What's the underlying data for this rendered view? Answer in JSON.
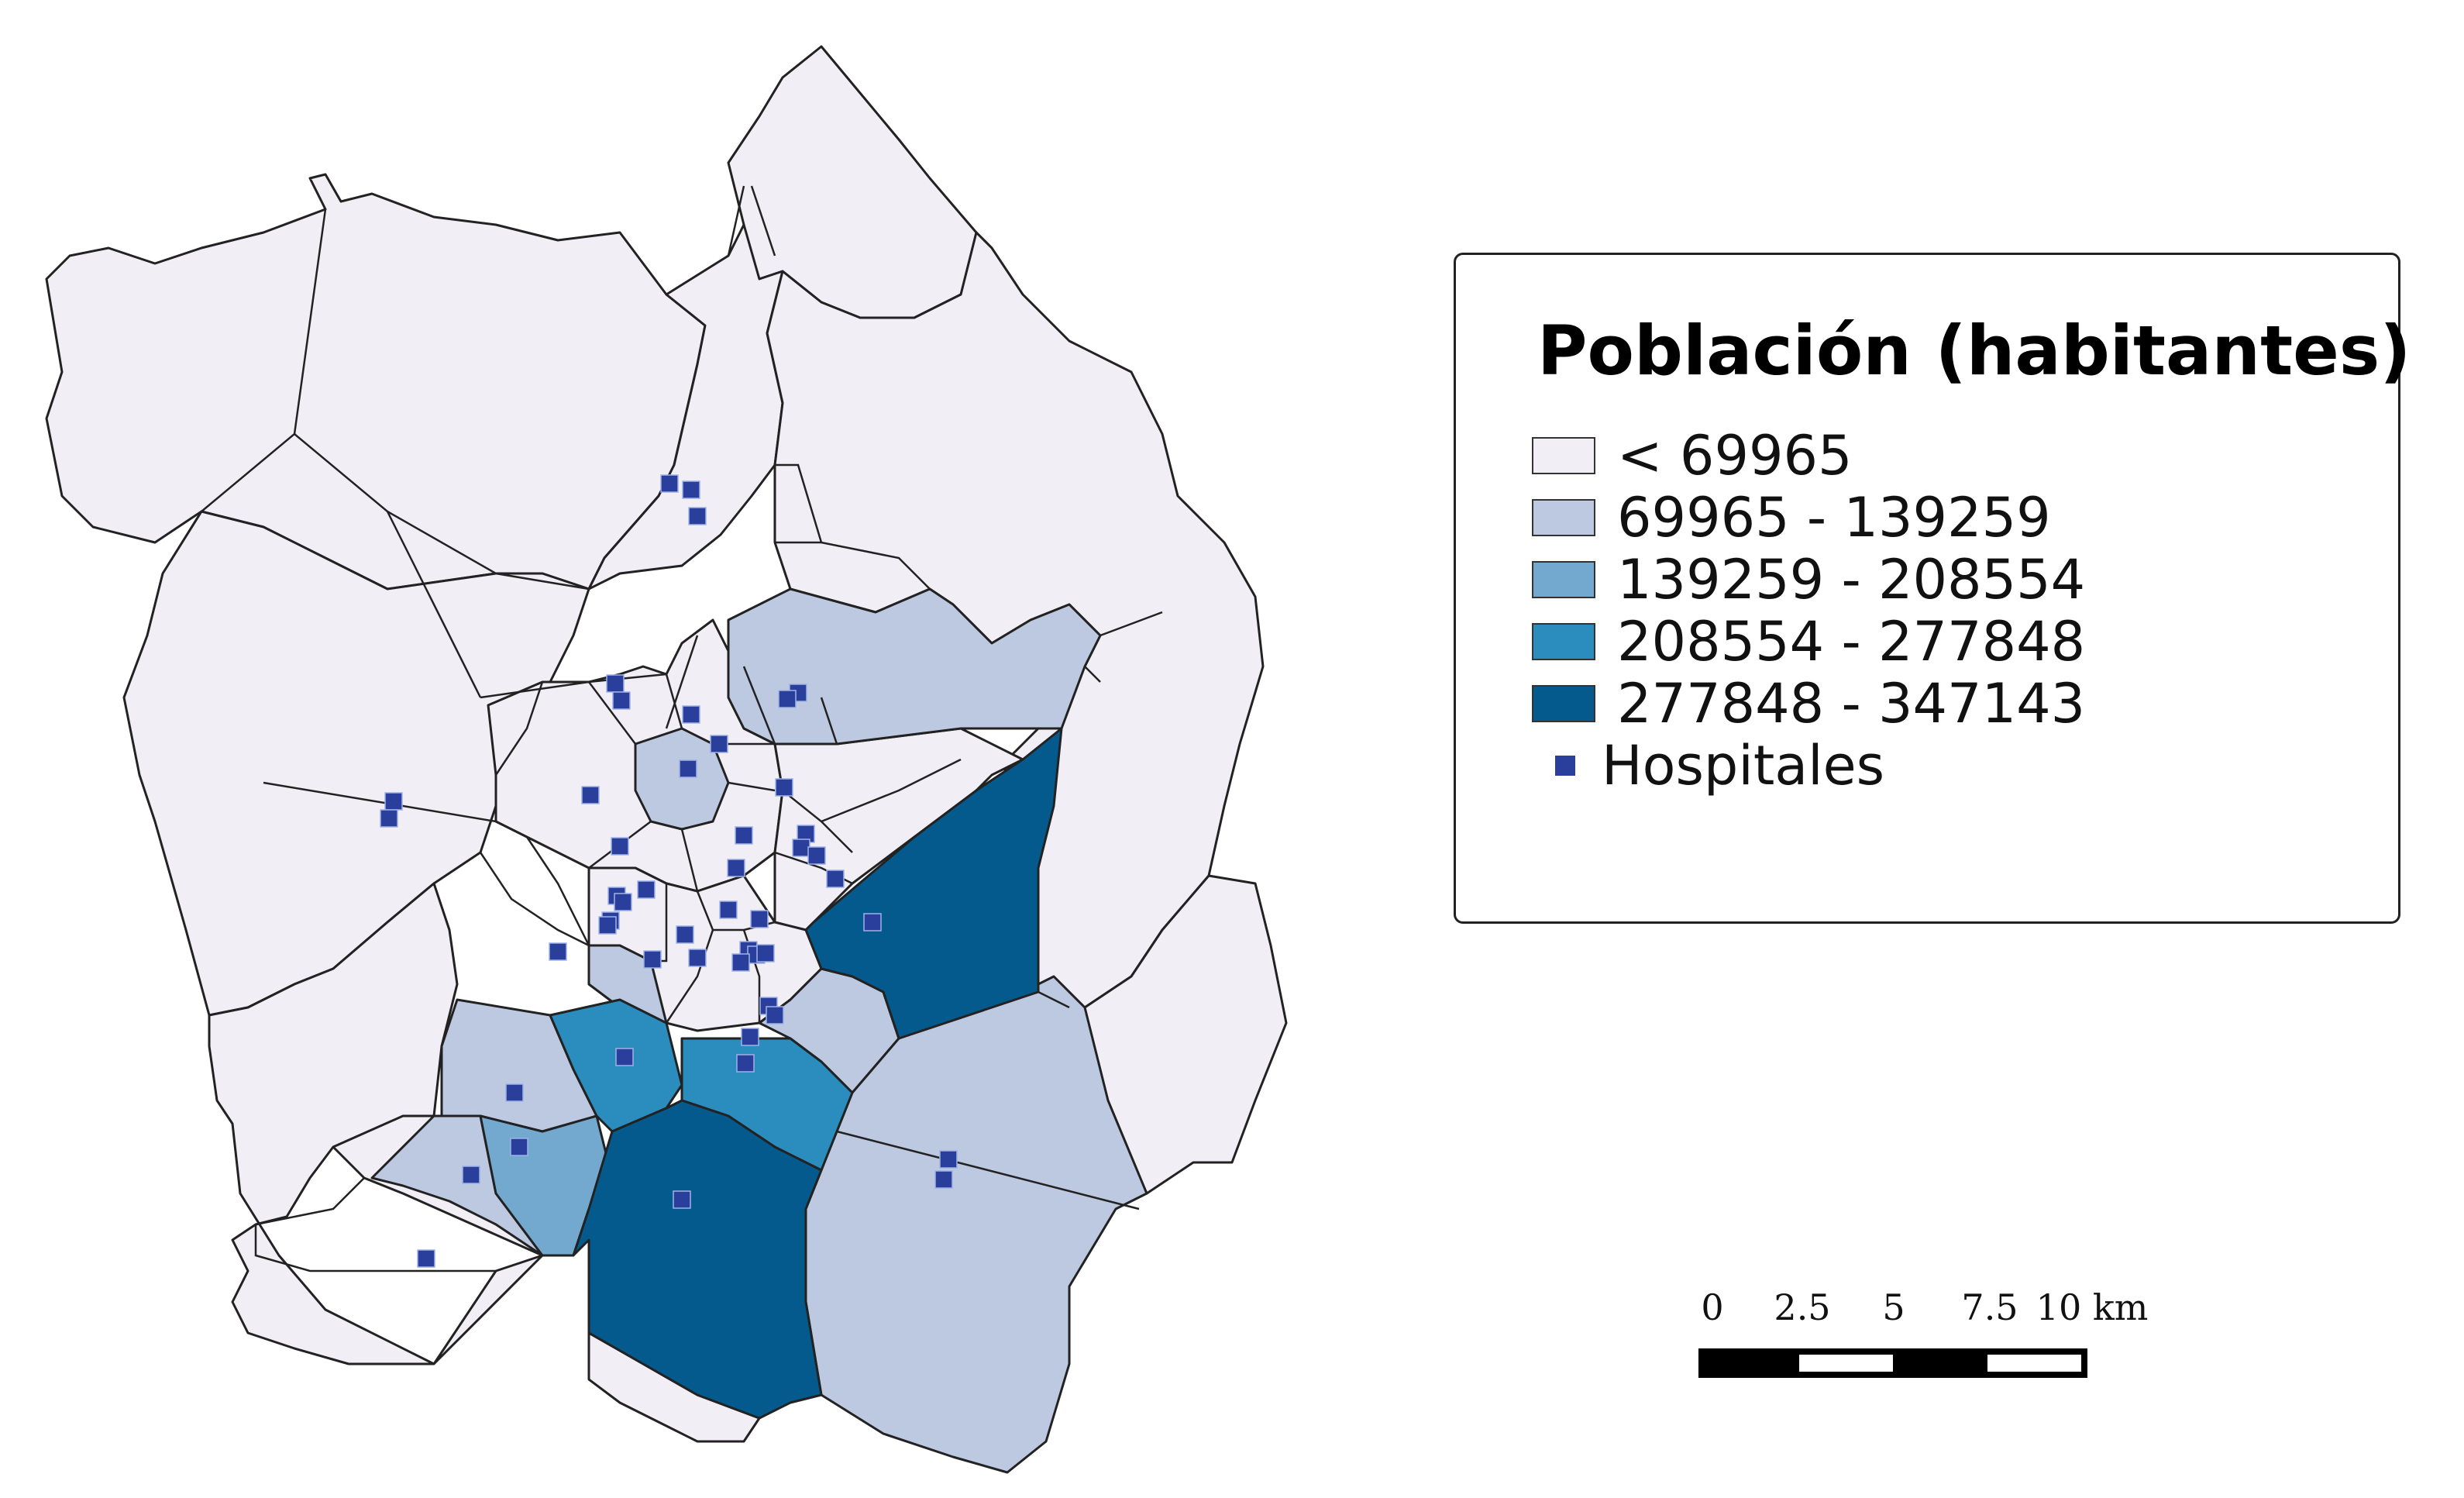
{
  "legend": {
    "title": "Población (habitantes)",
    "classes": [
      {
        "label": "< 69965",
        "color": "#f1eef6"
      },
      {
        "label": "69965 - 139259",
        "color": "#bdc9e1"
      },
      {
        "label": "139259 - 208554",
        "color": "#74a9cf"
      },
      {
        "label": "208554 - 277848",
        "color": "#2b8cbe"
      },
      {
        "label": "277848 - 347143",
        "color": "#045a8d"
      }
    ],
    "hospitals_label": "Hospitales",
    "hospital_color": "#2a3e9c"
  },
  "scale": {
    "ticks": [
      "0",
      "2.5",
      "5",
      "7.5",
      "10 km"
    ]
  }
}
